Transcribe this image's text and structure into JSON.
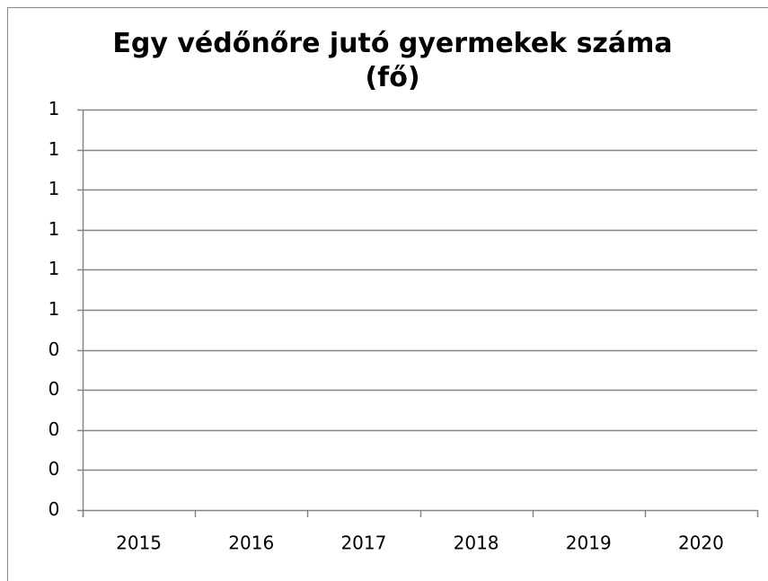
{
  "chart_data": {
    "type": "line",
    "title": "Egy védőnőre jutó gyermekek száma (fő)",
    "categories": [
      "2015",
      "2016",
      "2017",
      "2018",
      "2019",
      "2020"
    ],
    "ylim": [
      0,
      1
    ],
    "yticks": [
      0,
      {
        "value": 0.1,
        "label": "0"
      },
      {
        "value": 0.2,
        "label": "0"
      },
      {
        "value": 0.3,
        "label": "0"
      },
      {
        "value": 0.4,
        "label": "0"
      },
      {
        "value": 0.5,
        "label": "1"
      },
      {
        "value": 0.6,
        "label": "1"
      },
      {
        "value": 0.7,
        "label": "1"
      },
      {
        "value": 0.8,
        "label": "1"
      },
      {
        "value": 0.9,
        "label": "1"
      },
      1
    ],
    "grid": true
  }
}
